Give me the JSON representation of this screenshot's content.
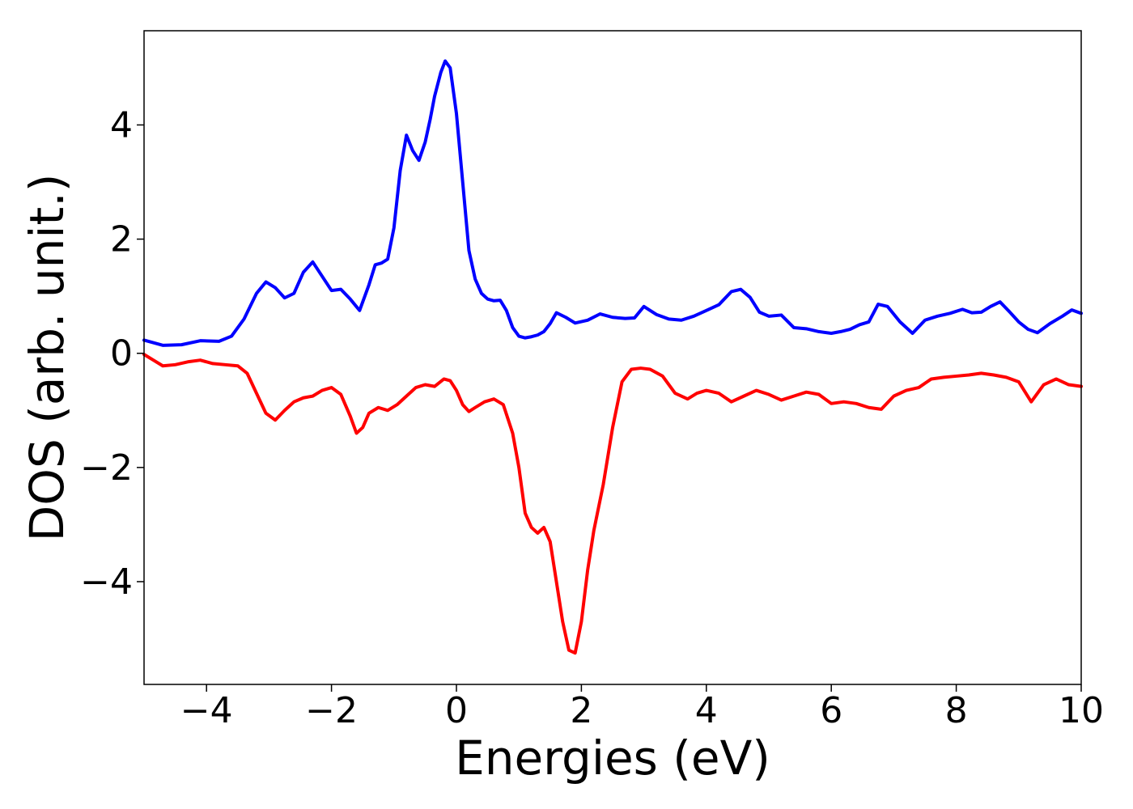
{
  "chart_data": {
    "type": "line",
    "title": "",
    "xlabel": "Energies (eV)",
    "ylabel": "DOS (arb. unit.)",
    "xlim": [
      -5,
      10
    ],
    "ylim": [
      -5.8,
      5.65
    ],
    "xticks": [
      -4,
      -2,
      0,
      2,
      4,
      6,
      8,
      10
    ],
    "xtick_labels": [
      "−4",
      "−2",
      "0",
      "2",
      "4",
      "6",
      "8",
      "10"
    ],
    "yticks": [
      -4,
      -2,
      0,
      2,
      4
    ],
    "ytick_labels": [
      "−4",
      "−2",
      "0",
      "2",
      "4"
    ],
    "grid": false,
    "legend": false,
    "series": [
      {
        "color": "#0000ff",
        "x": [
          -5.0,
          -4.7,
          -4.4,
          -4.1,
          -3.8,
          -3.6,
          -3.4,
          -3.2,
          -3.05,
          -2.9,
          -2.75,
          -2.6,
          -2.45,
          -2.3,
          -2.15,
          -2.0,
          -1.85,
          -1.7,
          -1.55,
          -1.4,
          -1.3,
          -1.2,
          -1.1,
          -1.0,
          -0.9,
          -0.8,
          -0.7,
          -0.6,
          -0.5,
          -0.42,
          -0.35,
          -0.25,
          -0.18,
          -0.1,
          0.0,
          0.1,
          0.2,
          0.3,
          0.4,
          0.5,
          0.6,
          0.7,
          0.8,
          0.9,
          1.0,
          1.1,
          1.2,
          1.3,
          1.4,
          1.5,
          1.6,
          1.75,
          1.9,
          2.1,
          2.3,
          2.5,
          2.7,
          2.85,
          3.0,
          3.2,
          3.4,
          3.6,
          3.8,
          4.0,
          4.2,
          4.4,
          4.55,
          4.7,
          4.85,
          5.0,
          5.2,
          5.4,
          5.6,
          5.8,
          6.0,
          6.15,
          6.3,
          6.45,
          6.6,
          6.75,
          6.9,
          7.1,
          7.3,
          7.5,
          7.7,
          7.9,
          8.1,
          8.25,
          8.4,
          8.55,
          8.7,
          8.85,
          9.0,
          9.15,
          9.3,
          9.5,
          9.7,
          9.85,
          10.0
        ],
        "y": [
          0.23,
          0.14,
          0.15,
          0.22,
          0.21,
          0.3,
          0.6,
          1.05,
          1.25,
          1.15,
          0.97,
          1.05,
          1.42,
          1.6,
          1.35,
          1.1,
          1.12,
          0.95,
          0.75,
          1.2,
          1.55,
          1.58,
          1.65,
          2.2,
          3.2,
          3.82,
          3.55,
          3.38,
          3.7,
          4.1,
          4.5,
          4.92,
          5.12,
          5.0,
          4.2,
          3.0,
          1.8,
          1.3,
          1.05,
          0.95,
          0.92,
          0.93,
          0.75,
          0.45,
          0.3,
          0.27,
          0.29,
          0.32,
          0.38,
          0.52,
          0.71,
          0.63,
          0.53,
          0.58,
          0.69,
          0.63,
          0.61,
          0.62,
          0.82,
          0.68,
          0.6,
          0.58,
          0.65,
          0.75,
          0.85,
          1.08,
          1.12,
          0.98,
          0.72,
          0.65,
          0.67,
          0.45,
          0.43,
          0.38,
          0.35,
          0.38,
          0.42,
          0.5,
          0.55,
          0.86,
          0.82,
          0.55,
          0.35,
          0.58,
          0.65,
          0.7,
          0.77,
          0.71,
          0.72,
          0.82,
          0.9,
          0.73,
          0.55,
          0.42,
          0.36,
          0.52,
          0.65,
          0.76,
          0.7
        ]
      },
      {
        "color": "#ff0000",
        "x": [
          -5.0,
          -4.85,
          -4.7,
          -4.5,
          -4.3,
          -4.1,
          -3.9,
          -3.7,
          -3.5,
          -3.35,
          -3.2,
          -3.05,
          -2.9,
          -2.75,
          -2.6,
          -2.45,
          -2.3,
          -2.15,
          -2.0,
          -1.85,
          -1.7,
          -1.6,
          -1.5,
          -1.4,
          -1.25,
          -1.1,
          -0.95,
          -0.8,
          -0.65,
          -0.5,
          -0.35,
          -0.2,
          -0.1,
          0.0,
          0.1,
          0.2,
          0.3,
          0.45,
          0.6,
          0.75,
          0.9,
          1.0,
          1.1,
          1.2,
          1.3,
          1.4,
          1.5,
          1.6,
          1.7,
          1.8,
          1.9,
          2.0,
          2.1,
          2.2,
          2.35,
          2.5,
          2.65,
          2.8,
          2.95,
          3.1,
          3.3,
          3.5,
          3.7,
          3.85,
          4.0,
          4.2,
          4.4,
          4.6,
          4.8,
          5.0,
          5.2,
          5.4,
          5.6,
          5.8,
          6.0,
          6.2,
          6.4,
          6.6,
          6.8,
          7.0,
          7.2,
          7.4,
          7.6,
          7.8,
          8.0,
          8.2,
          8.4,
          8.6,
          8.8,
          9.0,
          9.2,
          9.4,
          9.6,
          9.8,
          10.0
        ],
        "y": [
          -0.02,
          -0.12,
          -0.22,
          -0.2,
          -0.15,
          -0.12,
          -0.18,
          -0.2,
          -0.22,
          -0.35,
          -0.7,
          -1.05,
          -1.17,
          -1.0,
          -0.85,
          -0.78,
          -0.75,
          -0.65,
          -0.6,
          -0.72,
          -1.1,
          -1.4,
          -1.3,
          -1.05,
          -0.95,
          -1.0,
          -0.9,
          -0.75,
          -0.6,
          -0.55,
          -0.58,
          -0.45,
          -0.48,
          -0.65,
          -0.9,
          -1.02,
          -0.95,
          -0.85,
          -0.8,
          -0.9,
          -1.4,
          -2.0,
          -2.8,
          -3.05,
          -3.15,
          -3.05,
          -3.3,
          -4.0,
          -4.7,
          -5.2,
          -5.25,
          -4.7,
          -3.8,
          -3.1,
          -2.3,
          -1.3,
          -0.5,
          -0.28,
          -0.26,
          -0.28,
          -0.4,
          -0.7,
          -0.8,
          -0.7,
          -0.65,
          -0.7,
          -0.85,
          -0.75,
          -0.65,
          -0.72,
          -0.82,
          -0.75,
          -0.68,
          -0.72,
          -0.88,
          -0.85,
          -0.88,
          -0.95,
          -0.98,
          -0.75,
          -0.65,
          -0.6,
          -0.45,
          -0.42,
          -0.4,
          -0.38,
          -0.35,
          -0.38,
          -0.42,
          -0.5,
          -0.85,
          -0.55,
          -0.45,
          -0.55,
          -0.58
        ]
      }
    ]
  }
}
